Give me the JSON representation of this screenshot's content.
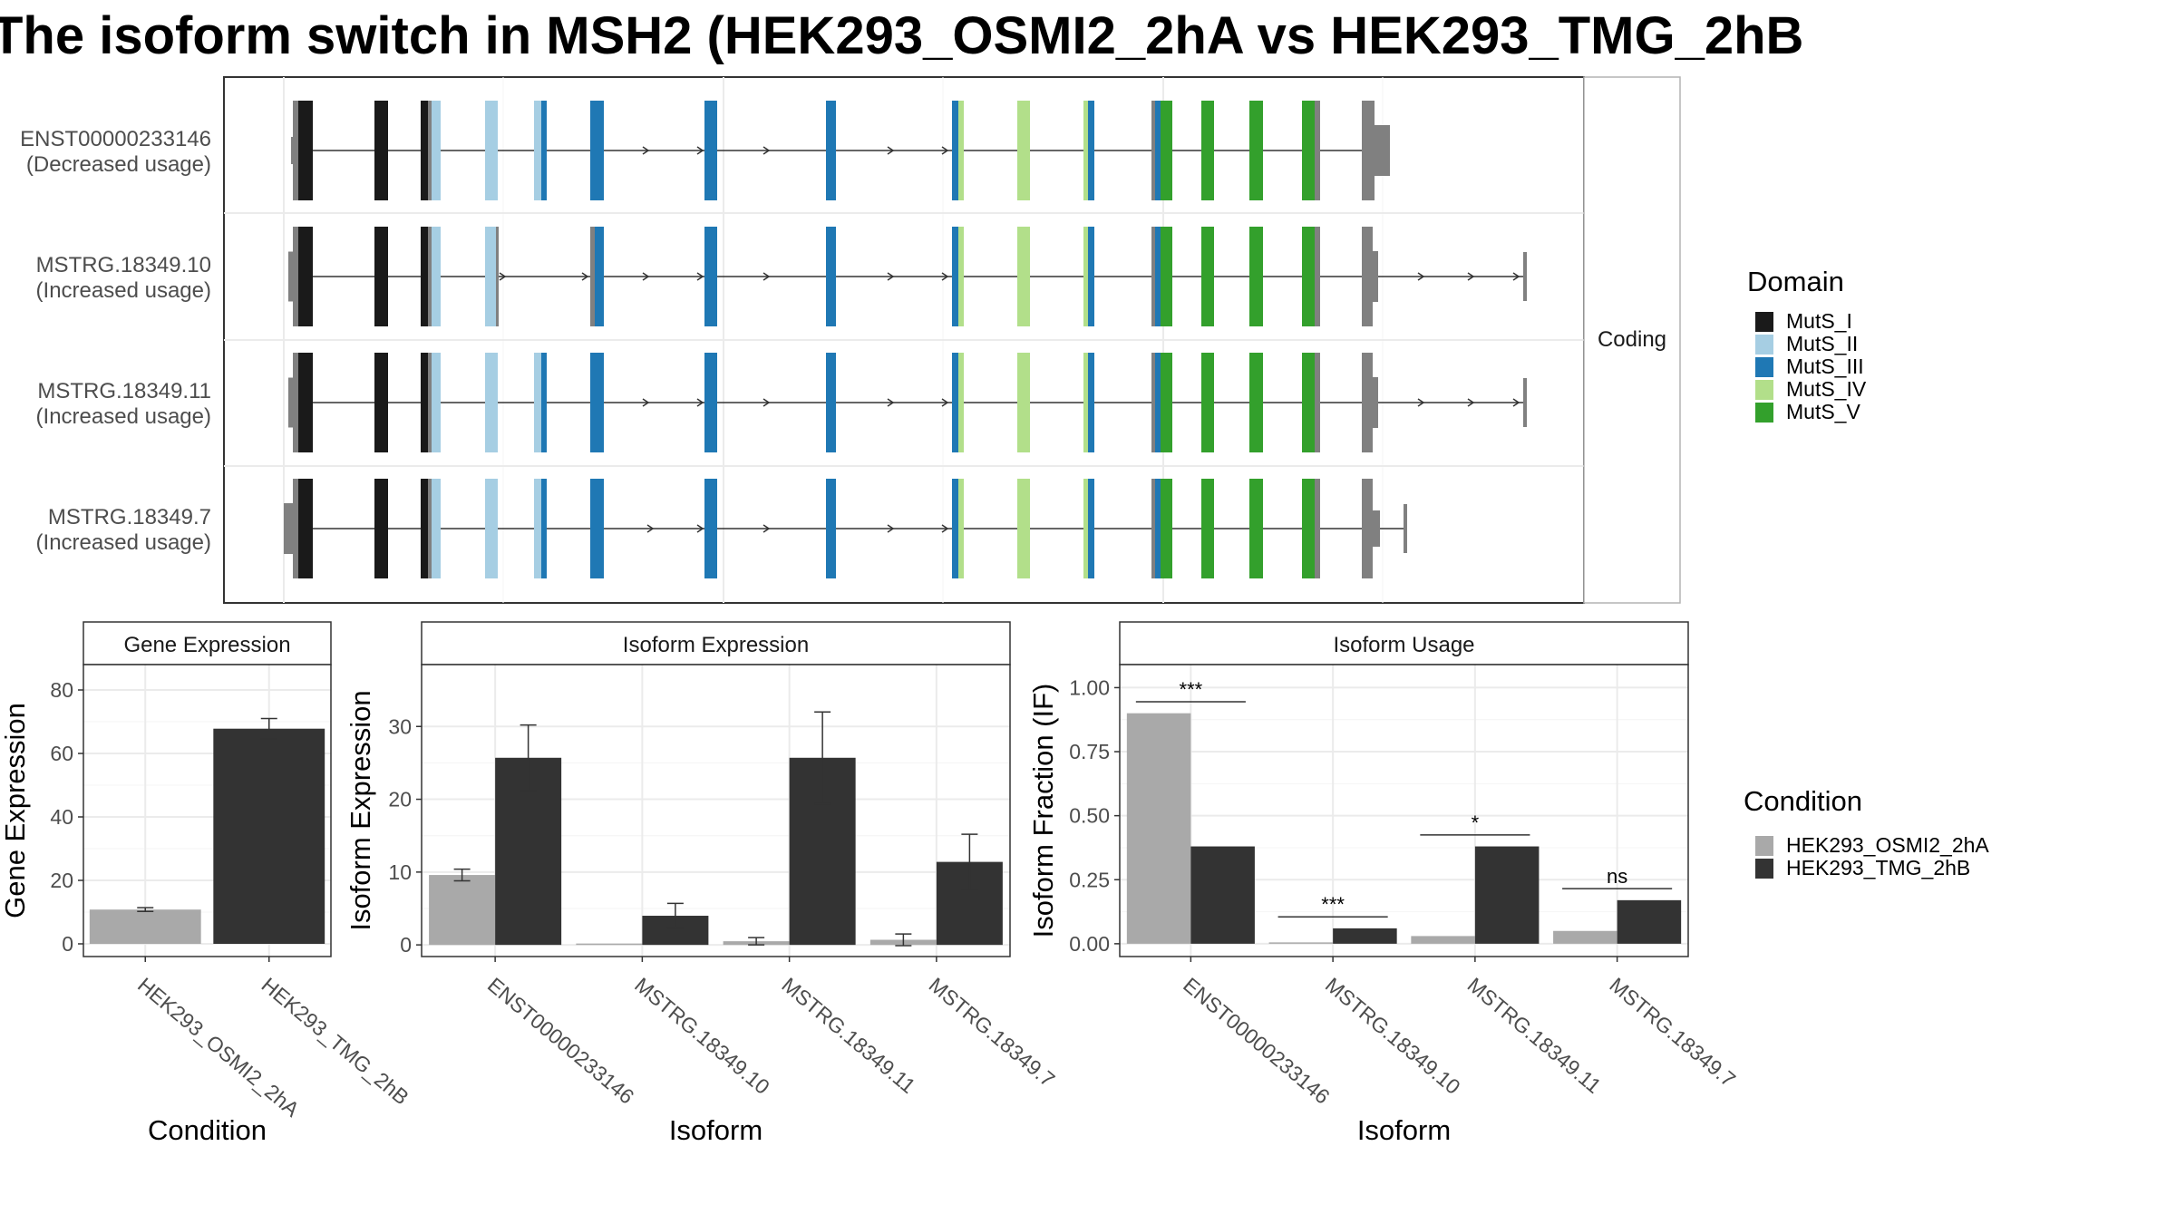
{
  "title": "The isoform switch in MSH2 (HEK293_OSMI2_2hA vs HEK293_TMG_2hB",
  "colors": {
    "MutS_I": "#1a1a1a",
    "MutS_II": "#a6cee3",
    "MutS_III": "#1f78b4",
    "MutS_IV": "#b2df8a",
    "MutS_V": "#33a02c",
    "noncoding_exon": "#808080",
    "cond1": "#a9a9a9",
    "cond2": "#333333"
  },
  "structure": {
    "strip_label": "Coding",
    "domain_legend_title": "Domain",
    "domains": [
      "MutS_I",
      "MutS_II",
      "MutS_III",
      "MutS_IV",
      "MutS_V"
    ],
    "transcripts": [
      {
        "id": "ENST00000233146",
        "usage": "(Decreased usage)"
      },
      {
        "id": "MSTRG.18349.10",
        "usage": "(Increased usage)"
      },
      {
        "id": "MSTRG.18349.11",
        "usage": "(Increased usage)"
      },
      {
        "id": "MSTRG.18349.7",
        "usage": "(Increased usage)"
      }
    ]
  },
  "condition_legend": {
    "title": "Condition",
    "items": [
      "HEK293_OSMI2_2hA",
      "HEK293_TMG_2hB"
    ]
  },
  "chart_data": [
    {
      "type": "bar",
      "strip": "Gene Expression",
      "xlabel": "Condition",
      "ylabel": "Gene Expression",
      "categories": [
        "HEK293_OSMI2_2hA",
        "HEK293_TMG_2hB"
      ],
      "values": [
        10.8,
        67.8
      ],
      "errors": [
        0.6,
        3.2
      ],
      "ylim": [
        -4,
        88
      ],
      "yticks": [
        0,
        20,
        40,
        60,
        80
      ]
    },
    {
      "type": "bar",
      "strip": "Isoform Expression",
      "xlabel": "Isoform",
      "ylabel": "Isoform Expression",
      "categories": [
        "ENST00000233146",
        "MSTRG.18349.10",
        "MSTRG.18349.11",
        "MSTRG.18349.7"
      ],
      "series": [
        {
          "name": "HEK293_OSMI2_2hA",
          "values": [
            9.6,
            0.0,
            0.5,
            0.7
          ],
          "errors": [
            0.8,
            0.0,
            0.5,
            0.8
          ]
        },
        {
          "name": "HEK293_TMG_2hB",
          "values": [
            25.7,
            4.0,
            25.7,
            11.4
          ],
          "errors": [
            4.5,
            1.7,
            6.3,
            3.8
          ]
        }
      ],
      "ylim": [
        -1.6,
        38.5
      ],
      "yticks": [
        0,
        10,
        20,
        30
      ]
    },
    {
      "type": "bar",
      "strip": "Isoform Usage",
      "xlabel": "Isoform",
      "ylabel": "Isoform Fraction (IF)",
      "categories": [
        "ENST00000233146",
        "MSTRG.18349.10",
        "MSTRG.18349.11",
        "MSTRG.18349.7"
      ],
      "series": [
        {
          "name": "HEK293_OSMI2_2hA",
          "values": [
            0.9,
            0.0,
            0.03,
            0.05
          ]
        },
        {
          "name": "HEK293_TMG_2hB",
          "values": [
            0.38,
            0.06,
            0.38,
            0.17
          ]
        }
      ],
      "significance": [
        "***",
        "***",
        "*",
        "ns"
      ],
      "ylim": [
        -0.05,
        1.09
      ],
      "yticks": [
        0.0,
        0.25,
        0.5,
        0.75,
        1.0
      ],
      "ytick_labels": [
        "0.00",
        "0.25",
        "0.50",
        "0.75",
        "1.00"
      ]
    }
  ]
}
